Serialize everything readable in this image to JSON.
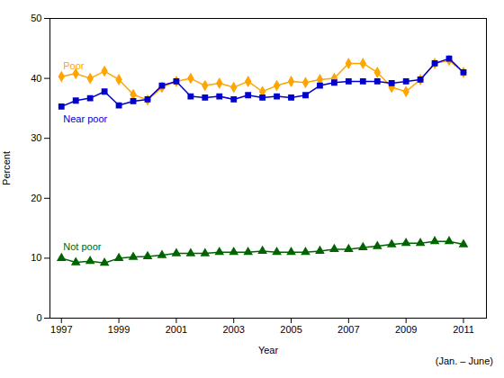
{
  "chart_data": {
    "type": "line",
    "x": [
      1997,
      1997.5,
      1998,
      1998.5,
      1999,
      1999.5,
      2000,
      2000.5,
      2001,
      2001.5,
      2002,
      2002.5,
      2003,
      2003.5,
      2004,
      2004.5,
      2005,
      2005.5,
      2006,
      2006.5,
      2007,
      2007.5,
      2008,
      2008.5,
      2009,
      2009.5,
      2010,
      2010.5,
      2011
    ],
    "series": [
      {
        "name": "Poor",
        "color": "#FFA500",
        "marker": "diamond",
        "values": [
          40.3,
          40.8,
          40.0,
          41.2,
          39.8,
          37.3,
          36.4,
          38.5,
          39.5,
          40.0,
          38.8,
          39.2,
          38.5,
          39.5,
          37.8,
          38.8,
          39.5,
          39.3,
          39.8,
          40.0,
          42.5,
          42.5,
          41.0,
          38.5,
          37.8,
          39.8,
          42.5,
          43.0,
          41.0
        ]
      },
      {
        "name": "Near poor",
        "color": "#0000CC",
        "marker": "square",
        "values": [
          35.3,
          36.3,
          36.7,
          37.8,
          35.5,
          36.2,
          36.5,
          38.8,
          39.5,
          37.0,
          36.8,
          37.0,
          36.5,
          37.2,
          36.8,
          37.0,
          36.8,
          37.2,
          38.8,
          39.3,
          39.5,
          39.5,
          39.5,
          39.2,
          39.5,
          39.8,
          42.5,
          43.3,
          41.0
        ]
      },
      {
        "name": "Not poor",
        "color": "#006400",
        "marker": "triangle",
        "values": [
          10.0,
          9.3,
          9.5,
          9.2,
          10.0,
          10.2,
          10.3,
          10.5,
          10.8,
          10.8,
          10.8,
          11.0,
          11.0,
          11.0,
          11.2,
          11.0,
          11.0,
          11.0,
          11.2,
          11.5,
          11.5,
          11.8,
          12.0,
          12.3,
          12.5,
          12.5,
          12.8,
          12.8,
          12.3
        ]
      }
    ],
    "xlabel": "Year",
    "ylabel": "Percent",
    "xlim": [
      1996.6,
      2011.8
    ],
    "ylim": [
      0,
      50
    ],
    "xticks": [
      1997,
      1999,
      2001,
      2003,
      2005,
      2007,
      2009,
      2011
    ],
    "yticks": [
      0,
      10,
      20,
      30,
      40,
      50
    ],
    "annotation": "(Jan. – June)",
    "grid": false,
    "legend": false
  }
}
